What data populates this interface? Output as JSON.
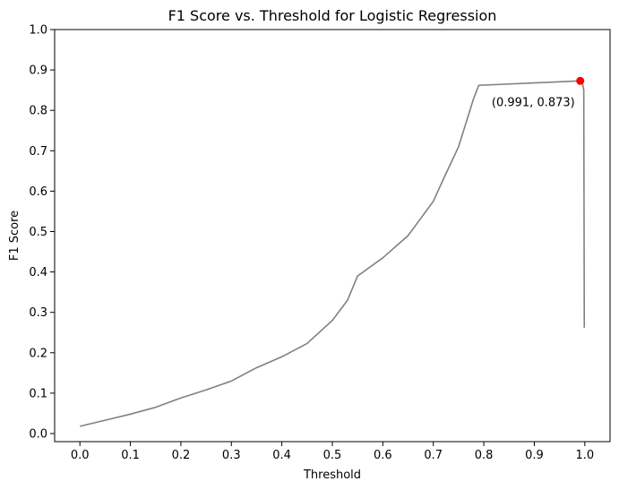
{
  "chart_data": {
    "type": "line",
    "title": "F1 Score vs. Threshold for Logistic Regression",
    "xlabel": "Threshold",
    "ylabel": "F1 Score",
    "xlim": [
      -0.05,
      1.05
    ],
    "ylim": [
      -0.02,
      1.0
    ],
    "x_ticks": [
      0.0,
      0.1,
      0.2,
      0.3,
      0.4,
      0.5,
      0.6,
      0.7,
      0.8,
      0.9,
      1.0
    ],
    "x_tick_labels": [
      "0.0",
      "0.1",
      "0.2",
      "0.3",
      "0.4",
      "0.5",
      "0.6",
      "0.7",
      "0.8",
      "0.9",
      "1.0"
    ],
    "y_ticks": [
      0.0,
      0.1,
      0.2,
      0.3,
      0.4,
      0.5,
      0.6,
      0.7,
      0.8,
      0.9,
      1.0
    ],
    "y_tick_labels": [
      "0.0",
      "0.1",
      "0.2",
      "0.3",
      "0.4",
      "0.5",
      "0.6",
      "0.7",
      "0.8",
      "0.9",
      "1.0"
    ],
    "grid": false,
    "series": [
      {
        "color": "#808080",
        "x": [
          0.0,
          0.05,
          0.1,
          0.15,
          0.2,
          0.25,
          0.3,
          0.35,
          0.4,
          0.45,
          0.5,
          0.53,
          0.55,
          0.6,
          0.65,
          0.7,
          0.72,
          0.75,
          0.78,
          0.79,
          0.991,
          0.995,
          0.998,
          0.999
        ],
        "y": [
          0.018,
          0.033,
          0.048,
          0.065,
          0.088,
          0.108,
          0.13,
          0.163,
          0.19,
          0.223,
          0.28,
          0.33,
          0.39,
          0.435,
          0.49,
          0.575,
          0.63,
          0.71,
          0.83,
          0.862,
          0.873,
          0.87,
          0.85,
          0.262
        ]
      }
    ],
    "highlight": {
      "x": 0.991,
      "y": 0.873,
      "color": "#ff0000",
      "label": "(0.991, 0.873)"
    }
  }
}
